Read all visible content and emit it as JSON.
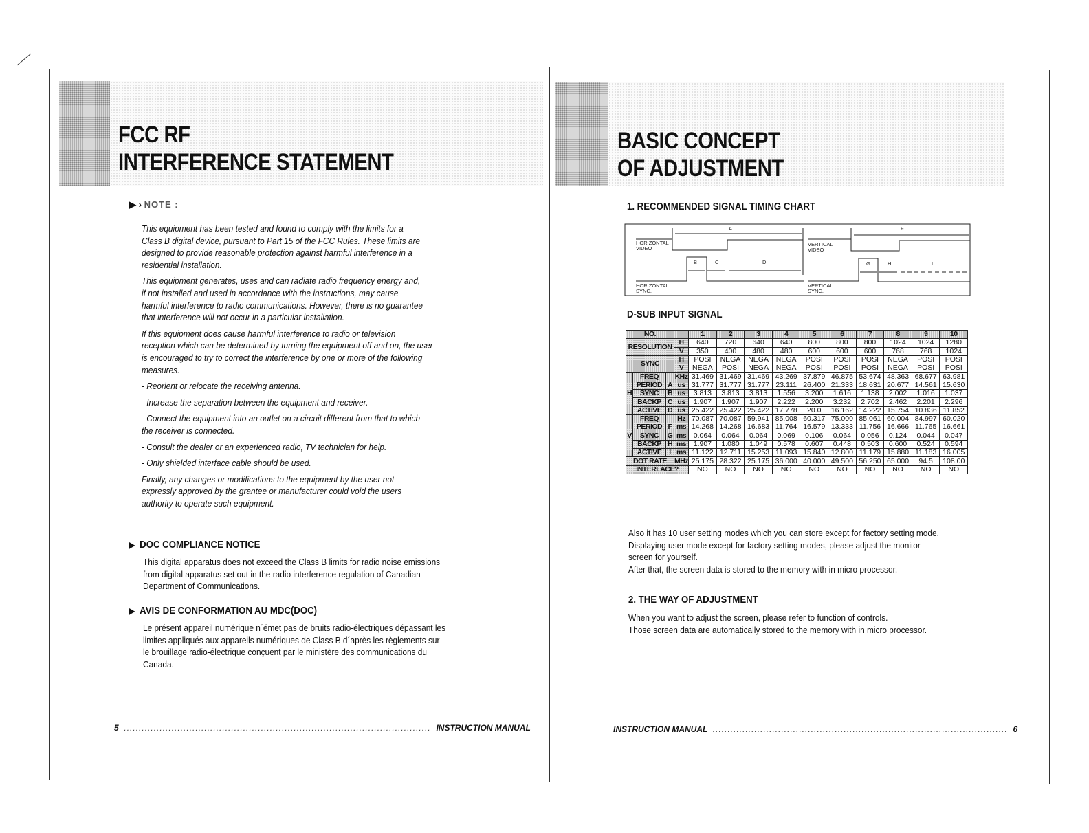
{
  "left_page": {
    "title_line1": "FCC RF",
    "title_line2": "INTERFERENCE STATEMENT",
    "note_label": "NOTE :",
    "note_paragraphs": [
      [
        "This equipment has been tested and found to comply with the limits for a",
        "Class B digital device, pursuant to Part 15 of the FCC Rules. These limits are",
        "designed to provide reasonable protection against harmful interference in a",
        "residential installation."
      ],
      [
        "This equipment generates, uses and can radiate radio frequency energy and,",
        "if not installed and used in accordance with the instructions, may cause",
        "harmful interference to radio communications. However, there is no guarantee",
        "that interference will not occur in a particular installation."
      ],
      [
        "If this equipment does cause harmful interference to radio or television",
        "reception which can be determined by turning the equipment off and on, the user",
        "is encouraged to try to correct the interference by one or more of the following",
        "measures."
      ],
      [
        "- Reorient or relocate the receiving antenna."
      ],
      [
        "- Increase the separation between the equipment and receiver."
      ],
      [
        "- Connect the equipment into an outlet on a circuit different from that to which",
        "   the receiver is connected."
      ],
      [
        "- Consult the dealer or an experienced radio, TV technician for help."
      ],
      [
        "- Only shielded interface cable should be used."
      ],
      [
        "Finally, any changes or modifications to the equipment by the user not",
        "expressly approved by the grantee or manufacturer could void the users",
        "authority to operate such equipment."
      ]
    ],
    "doc_heading": "DOC COMPLIANCE NOTICE",
    "doc_text": [
      "This digital apparatus does not exceed the Class B limits for radio noise emissions",
      "from digital apparatus set out in the radio interference regulation of Canadian",
      "Department of Communications."
    ],
    "avis_heading": "AVIS DE CONFORMATION AU MDC(DOC)",
    "avis_text": [
      "Le présent appareil numérique n´émet pas de bruits radio-électriques dépassant les",
      "limites appliqués aux appareils numériques de Class B d´après les règlements sur",
      "le brouillage radio-électrique conçuent par le ministère des communications du",
      "Canada."
    ],
    "page_number": "5",
    "footer_label": "INSTRUCTION MANUAL"
  },
  "right_page": {
    "title_line1": "BASIC CONCEPT",
    "title_line2": "OF ADJUSTMENT",
    "section1_heading": "1. RECOMMENDED SIGNAL TIMING CHART",
    "diagram": {
      "h_video": [
        "HORIZONTAL",
        "VIDEO"
      ],
      "h_sync": [
        "HORIZONTAL",
        "SYNC."
      ],
      "v_video": [
        "VERTICAL",
        "VIDEO"
      ],
      "v_sync": [
        "VERTICAL",
        "SYNC."
      ],
      "letters": {
        "A": "A",
        "B": "B",
        "C": "C",
        "D": "D",
        "F": "F",
        "G": "G",
        "H": "H",
        "I": "I"
      }
    },
    "dsub_heading": "D-SUB INPUT SIGNAL",
    "table": {
      "no_label": "NO.",
      "columns": [
        "1",
        "2",
        "3",
        "4",
        "5",
        "6",
        "7",
        "8",
        "9",
        "10"
      ],
      "resolution_label": "RESOLUTION",
      "resolution": {
        "H": [
          "640",
          "720",
          "640",
          "640",
          "800",
          "800",
          "800",
          "1024",
          "1024",
          "1280"
        ],
        "V": [
          "350",
          "400",
          "480",
          "480",
          "600",
          "600",
          "600",
          "768",
          "768",
          "1024"
        ]
      },
      "sync_label": "SYNC",
      "sync": {
        "H": [
          "POSI",
          "NEGA",
          "NEGA",
          "NEGA",
          "POSI",
          "POSI",
          "POSI",
          "NEGA",
          "POSI",
          "POSI"
        ],
        "V": [
          "NEGA",
          "POSI",
          "NEGA",
          "NEGA",
          "POSI",
          "POSI",
          "POSI",
          "NEGA",
          "POSI",
          "POSI"
        ]
      },
      "groups": [
        {
          "label": "H",
          "rows": [
            {
              "name": "FREQ",
              "letter": "",
              "unit": "KHz",
              "values": [
                "31.469",
                "31.469",
                "31.469",
                "43.269",
                "37.879",
                "46.875",
                "53.674",
                "48.363",
                "68.677",
                "63.981"
              ]
            },
            {
              "name": "PERIOD",
              "letter": "A",
              "unit": "us",
              "values": [
                "31.777",
                "31.777",
                "31.777",
                "23.111",
                "26.400",
                "21.333",
                "18.631",
                "20.677",
                "14.561",
                "15.630"
              ]
            },
            {
              "name": "SYNC",
              "letter": "B",
              "unit": "us",
              "values": [
                "3.813",
                "3.813",
                "3.813",
                "1.556",
                "3.200",
                "1.616",
                "1.138",
                "2.002",
                "1.016",
                "1.037"
              ]
            },
            {
              "name": "BACKP",
              "letter": "C",
              "unit": "us",
              "values": [
                "1.907",
                "1.907",
                "1.907",
                "2.222",
                "2.200",
                "3.232",
                "2.702",
                "2.462",
                "2.201",
                "2.296"
              ]
            },
            {
              "name": "ACTIVE",
              "letter": "D",
              "unit": "us",
              "values": [
                "25.422",
                "25.422",
                "25.422",
                "17.778",
                "20.0",
                "16.162",
                "14.222",
                "15.754",
                "10.836",
                "11.852"
              ]
            }
          ]
        },
        {
          "label": "V",
          "rows": [
            {
              "name": "FREQ",
              "letter": "",
              "unit": "Hz",
              "values": [
                "70.087",
                "70.087",
                "59.941",
                "85.008",
                "60.317",
                "75.000",
                "85.061",
                "60.004",
                "84.997",
                "60.020"
              ]
            },
            {
              "name": "PERIOD",
              "letter": "F",
              "unit": "ms",
              "values": [
                "14.268",
                "14.268",
                "16.683",
                "11.764",
                "16.579",
                "13.333",
                "11.756",
                "16.666",
                "11.765",
                "16.661"
              ]
            },
            {
              "name": "SYNC",
              "letter": "G",
              "unit": "ms",
              "values": [
                "0.064",
                "0.064",
                "0.064",
                "0.069",
                "0.106",
                "0.064",
                "0.056",
                "0.124",
                "0.044",
                "0.047"
              ]
            },
            {
              "name": "BACKP",
              "letter": "H",
              "unit": "ms",
              "values": [
                "1.907",
                "1.080",
                "1.049",
                "0.578",
                "0.607",
                "0.448",
                "0.503",
                "0.600",
                "0.524",
                "0.594"
              ]
            },
            {
              "name": "ACTIVE",
              "letter": "I",
              "unit": "ms",
              "values": [
                "11.122",
                "12.711",
                "15.253",
                "11.093",
                "15.840",
                "12.800",
                "11.179",
                "15.880",
                "11.183",
                "16.005"
              ]
            }
          ]
        }
      ],
      "dot_rate": {
        "name": "DOT RATE",
        "unit": "MHz",
        "values": [
          "25.175",
          "28.322",
          "25.175",
          "36.000",
          "40.000",
          "49.500",
          "56.250",
          "65.000",
          "94.5",
          "108.00"
        ]
      },
      "interlace": {
        "name": "INTERLACE?",
        "values": [
          "NO",
          "NO",
          "NO",
          "NO",
          "NO",
          "NO",
          "NO",
          "NO",
          "NO",
          "NO"
        ]
      }
    },
    "after_table_text": [
      "Also it has 10 user setting modes which you can store except for factory setting mode.",
      "Displaying user mode except for factory setting modes, please adjust the monitor",
      "screen for yourself.",
      "After that, the screen data is stored to the memory with in micro processor."
    ],
    "section2_heading": "2. THE WAY OF ADJUSTMENT",
    "section2_text": [
      "When you want to adjust the screen, please refer to function of controls.",
      "Those screen data are automatically stored to the memory with in micro processor."
    ],
    "page_number": "6",
    "footer_label": "INSTRUCTION MANUAL"
  }
}
